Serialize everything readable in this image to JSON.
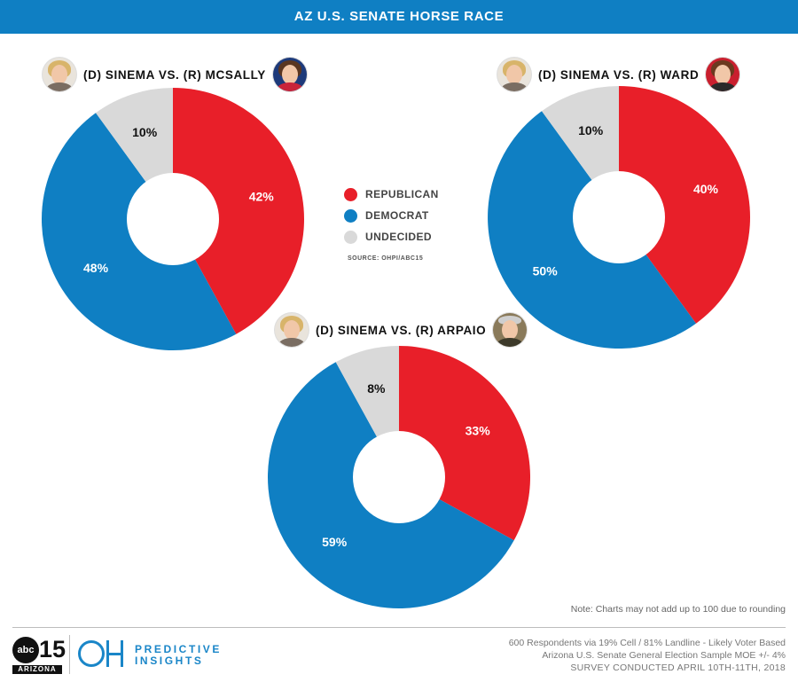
{
  "header": {
    "title": "AZ U.S. SENATE HORSE RACE"
  },
  "colors": {
    "republican": "#e81f29",
    "democrat": "#0f7fc3",
    "undecided": "#d9d9d9",
    "header": "#0f7fc3"
  },
  "legend": {
    "items": [
      {
        "label": "REPUBLICAN",
        "color": "#e81f29"
      },
      {
        "label": "DEMOCRAT",
        "color": "#0f7fc3"
      },
      {
        "label": "UNDECIDED",
        "color": "#d9d9d9"
      }
    ],
    "source": "SOURCE: OHPI/ABC15"
  },
  "chart_data": [
    {
      "type": "pie",
      "title": "(D) SINEMA VS. (R) MCSALLY",
      "categories": [
        "REPUBLICAN",
        "DEMOCRAT",
        "UNDECIDED"
      ],
      "values": [
        42,
        48,
        10
      ],
      "labels": [
        "42%",
        "48%",
        "10%"
      ]
    },
    {
      "type": "pie",
      "title": "(D) SINEMA VS. (R) WARD",
      "categories": [
        "REPUBLICAN",
        "DEMOCRAT",
        "UNDECIDED"
      ],
      "values": [
        40,
        50,
        10
      ],
      "labels": [
        "40%",
        "50%",
        "10%"
      ]
    },
    {
      "type": "pie",
      "title": "(D) SINEMA VS. (R) ARPAIO",
      "categories": [
        "REPUBLICAN",
        "DEMOCRAT",
        "UNDECIDED"
      ],
      "values": [
        33,
        59,
        8
      ],
      "labels": [
        "33%",
        "59%",
        "8%"
      ]
    }
  ],
  "note": "Note: Charts may not add up to 100 due to rounding",
  "footer": {
    "line1": "600 Respondents via 19% Cell / 81% Landline - Likely Voter Based",
    "line2": "Arizona U.S. Senate General Election Sample MOE +/- 4%",
    "line3": "SURVEY CONDUCTED APRIL 10TH-11TH, 2018"
  },
  "logos": {
    "abc_text": "abc",
    "abc_number": "15",
    "abc_region": "ARIZONA",
    "predictive_line1": "PREDICTIVE",
    "predictive_line2": "INSIGHTS"
  }
}
